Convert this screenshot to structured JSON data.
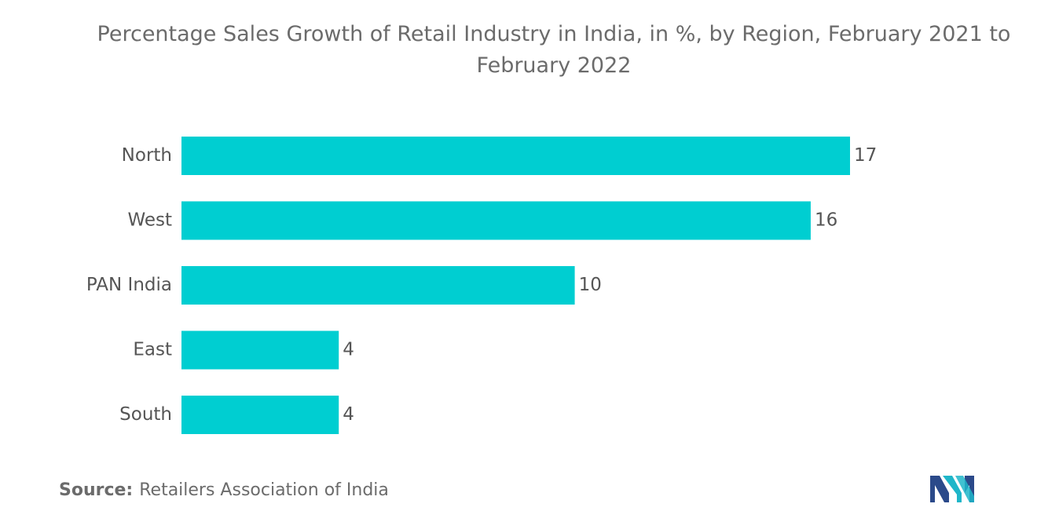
{
  "chart_data": {
    "type": "bar",
    "orientation": "horizontal",
    "title": "Percentage Sales Growth of Retail Industry in India, in %, by Region, February 2021 to February 2022",
    "categories": [
      "North",
      "West",
      "PAN India",
      "East",
      "South"
    ],
    "values": [
      17,
      16,
      10,
      4,
      4
    ],
    "data_labels": [
      "17",
      "16",
      "10",
      "4",
      "4"
    ],
    "xlabel": "",
    "ylabel": "",
    "xlim": [
      0,
      17
    ],
    "grid": false,
    "bar_color": "#00CED1"
  },
  "source": {
    "label": "Source:",
    "text": "Retailers Association of India"
  },
  "logo": {
    "icon": "mordor-intelligence-logo-icon",
    "colors": [
      "#2B4A8A",
      "#1FB6C9"
    ]
  }
}
